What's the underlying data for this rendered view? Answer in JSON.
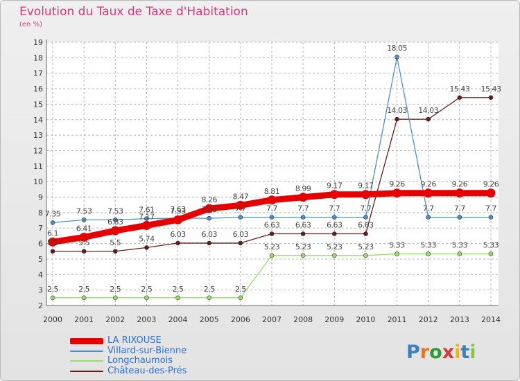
{
  "title": "Evolution du Taux de Taxe d'Habitation",
  "subtitle": "(en %)",
  "brand": "Proxiti",
  "colors": {
    "title": "#d6387a",
    "axis": "#333333",
    "grid": "#b5b5b5",
    "legend_text": "#2a6fd6"
  },
  "chart_data": {
    "type": "line",
    "x": [
      2000,
      2001,
      2002,
      2003,
      2004,
      2005,
      2006,
      2007,
      2008,
      2009,
      2010,
      2011,
      2012,
      2013,
      2014
    ],
    "ylim": [
      2,
      19
    ],
    "yticks": [
      2,
      3,
      4,
      5,
      6,
      7,
      8,
      9,
      10,
      11,
      12,
      13,
      14,
      15,
      16,
      17,
      18,
      19
    ],
    "grid": true,
    "legend": "bottom-left",
    "series": [
      {
        "name": "LA RIXOUSE",
        "color": "#e60000",
        "width": 9,
        "labels": true,
        "values": [
          6.1,
          6.41,
          6.83,
          7.17,
          7.53,
          8.26,
          8.47,
          8.81,
          8.99,
          9.17,
          9.17,
          9.26,
          9.26,
          9.26,
          9.26
        ]
      },
      {
        "name": "Villard-sur-Bienne",
        "color": "#4a90d0",
        "width": 1.3,
        "labels": true,
        "values": [
          7.35,
          7.53,
          7.53,
          7.61,
          7.63,
          7.63,
          7.7,
          7.7,
          7.7,
          7.7,
          7.7,
          18.05,
          7.7,
          7.7,
          7.7
        ]
      },
      {
        "name": "Longchaumois",
        "color": "#99dd66",
        "width": 1.3,
        "labels": true,
        "values": [
          2.5,
          2.5,
          2.5,
          2.5,
          2.5,
          2.5,
          2.5,
          5.23,
          5.23,
          5.23,
          5.23,
          5.33,
          5.33,
          5.33,
          5.33
        ]
      },
      {
        "name": "Château-des-Prés",
        "color": "#6b1a1a",
        "width": 1.3,
        "labels": true,
        "values": [
          5.5,
          5.5,
          5.5,
          5.74,
          6.03,
          6.03,
          6.03,
          6.63,
          6.63,
          6.63,
          6.63,
          14.03,
          14.03,
          15.43,
          15.43
        ]
      }
    ]
  }
}
